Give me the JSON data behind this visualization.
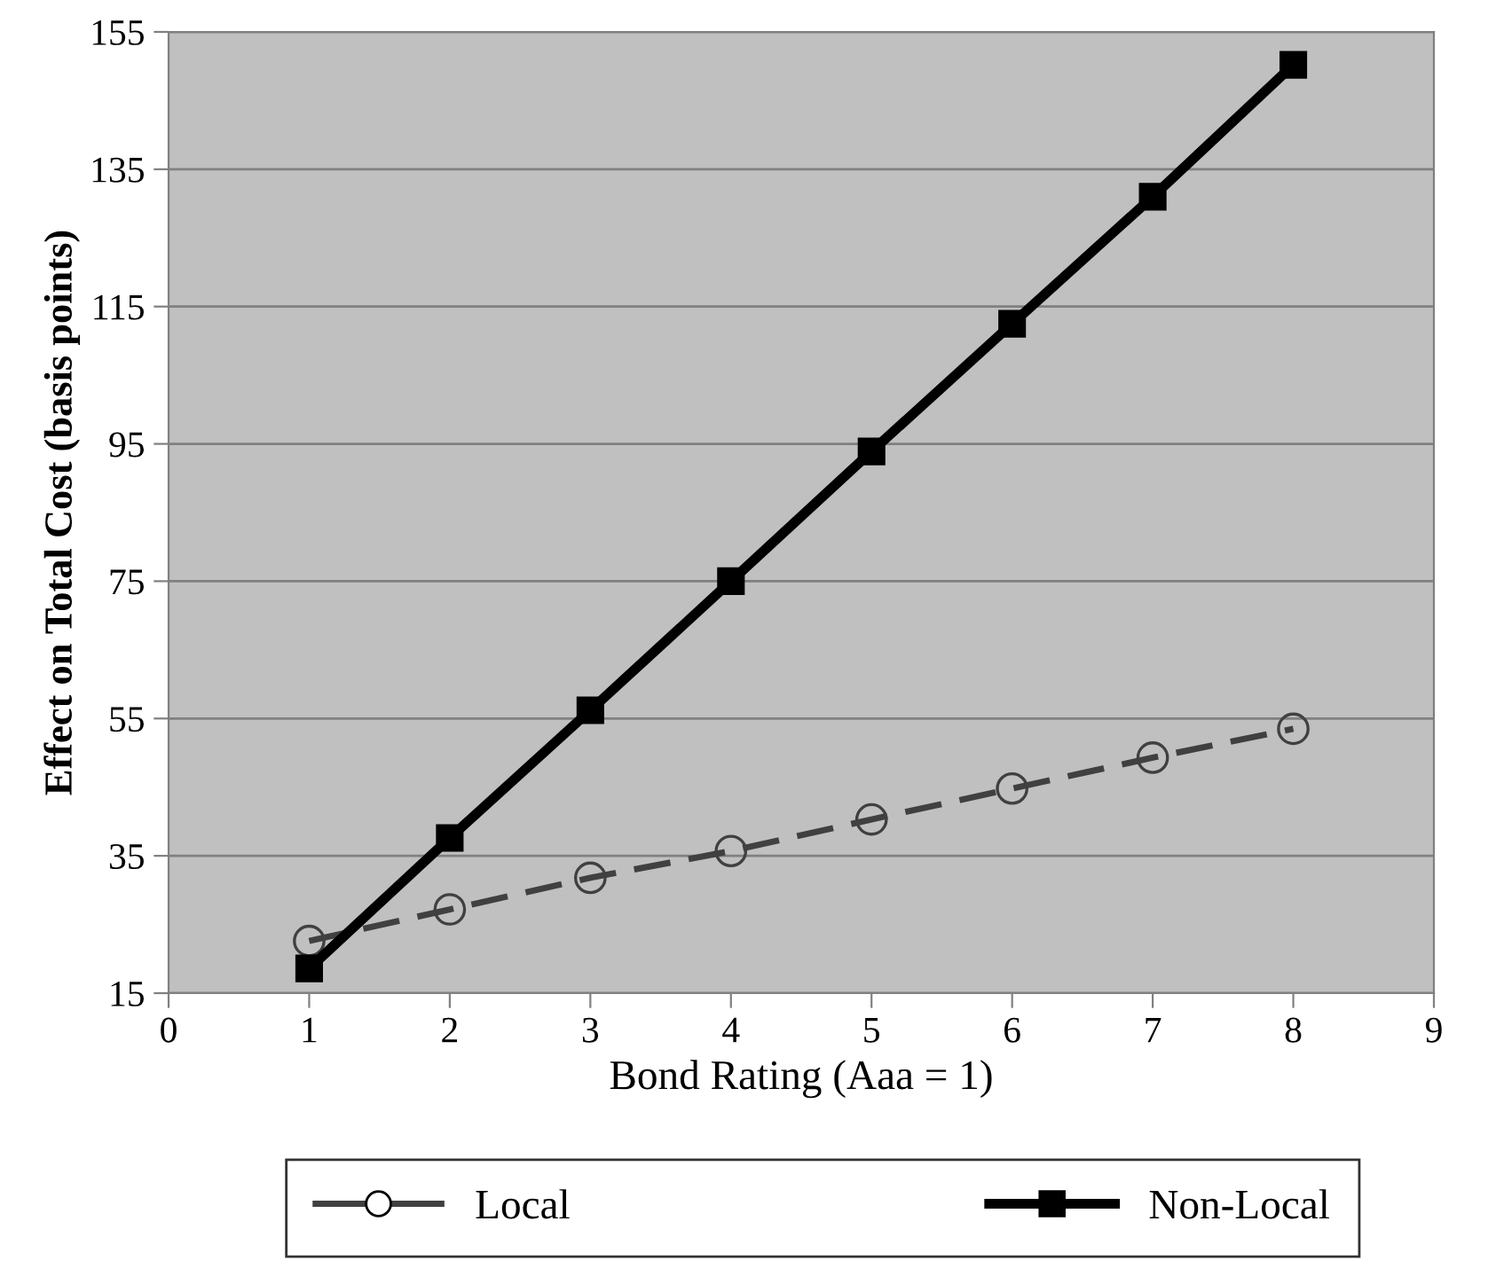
{
  "chart_data": {
    "type": "line",
    "xlabel": "Bond Rating (Aaa = 1)",
    "ylabel": "Effect on Total Cost (basis points)",
    "x": [
      1,
      2,
      3,
      4,
      5,
      6,
      7,
      8
    ],
    "series": [
      {
        "name": "Local",
        "color": "#404040",
        "marker": "circle",
        "line_style": "dashed",
        "values": [
          22.6,
          27.2,
          31.8,
          35.7,
          40.3,
          44.8,
          49.3,
          53.5
        ]
      },
      {
        "name": "Non-Local",
        "color": "#000000",
        "marker": "square",
        "line_style": "solid",
        "values": [
          18.6,
          37.6,
          56.2,
          75,
          93.9,
          112.5,
          131,
          150.2
        ]
      }
    ],
    "xlim": [
      0,
      9
    ],
    "xticks": [
      0,
      1,
      2,
      3,
      4,
      5,
      6,
      7,
      8,
      9
    ],
    "ylim": [
      15,
      155
    ],
    "yticks": [
      15,
      35,
      55,
      75,
      95,
      115,
      135,
      155
    ],
    "grid": "y",
    "legend": "bottom"
  }
}
